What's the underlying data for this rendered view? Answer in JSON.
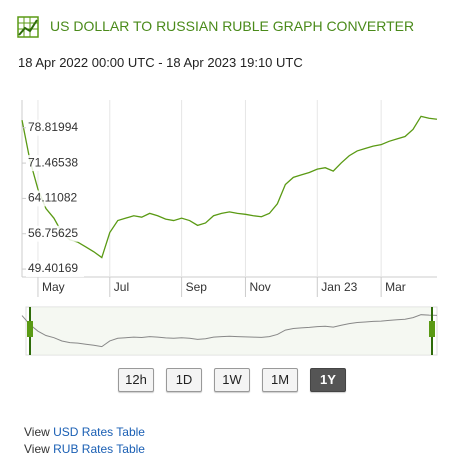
{
  "header": {
    "title": "US DOLLAR TO RUSSIAN RUBLE GRAPH CONVERTER",
    "range": "18 Apr 2022 00:00 UTC - 18 Apr 2023 19:10 UTC"
  },
  "chart_data": {
    "type": "line",
    "categories": [
      null,
      null,
      "May",
      null,
      null,
      null,
      null,
      null,
      null,
      null,
      null,
      "Jul",
      null,
      null,
      null,
      null,
      null,
      null,
      null,
      null,
      "Sep",
      null,
      null,
      null,
      null,
      null,
      null,
      null,
      "Nov",
      null,
      null,
      null,
      null,
      null,
      null,
      null,
      null,
      "Jan 23",
      null,
      null,
      null,
      null,
      null,
      null,
      null,
      "Mar",
      null,
      null,
      null,
      null,
      null,
      null,
      null
    ],
    "series": [
      {
        "color": "#5a9a14",
        "values": [
          80.4,
          72,
          66,
          62,
          60,
          57,
          55.5,
          55,
          54,
          53,
          51.8,
          57,
          59.5,
          60,
          60.5,
          60.2,
          61,
          60.5,
          59.8,
          59.5,
          60,
          59.5,
          58.5,
          59,
          60.5,
          61,
          61.3,
          61,
          60.8,
          60.5,
          60.3,
          61,
          63,
          67,
          68.5,
          69,
          69.5,
          70.2,
          70.5,
          69.8,
          71.5,
          73,
          74,
          74.5,
          75,
          75.3,
          76,
          76.5,
          77,
          78.5,
          81.2,
          80.8,
          80.6
        ]
      }
    ],
    "ylim": [
      47.75,
      84.6
    ],
    "yticks": [
      49.40169,
      56.75625,
      64.11082,
      71.46538,
      78.81994
    ],
    "grid": true
  },
  "range_buttons": [
    "12h",
    "1D",
    "1W",
    "1M",
    "1Y"
  ],
  "active_button": 4,
  "links": [
    {
      "prefix": "View",
      "label": "USD Rates Table"
    },
    {
      "prefix": "View",
      "label": "RUB Rates Table"
    }
  ]
}
